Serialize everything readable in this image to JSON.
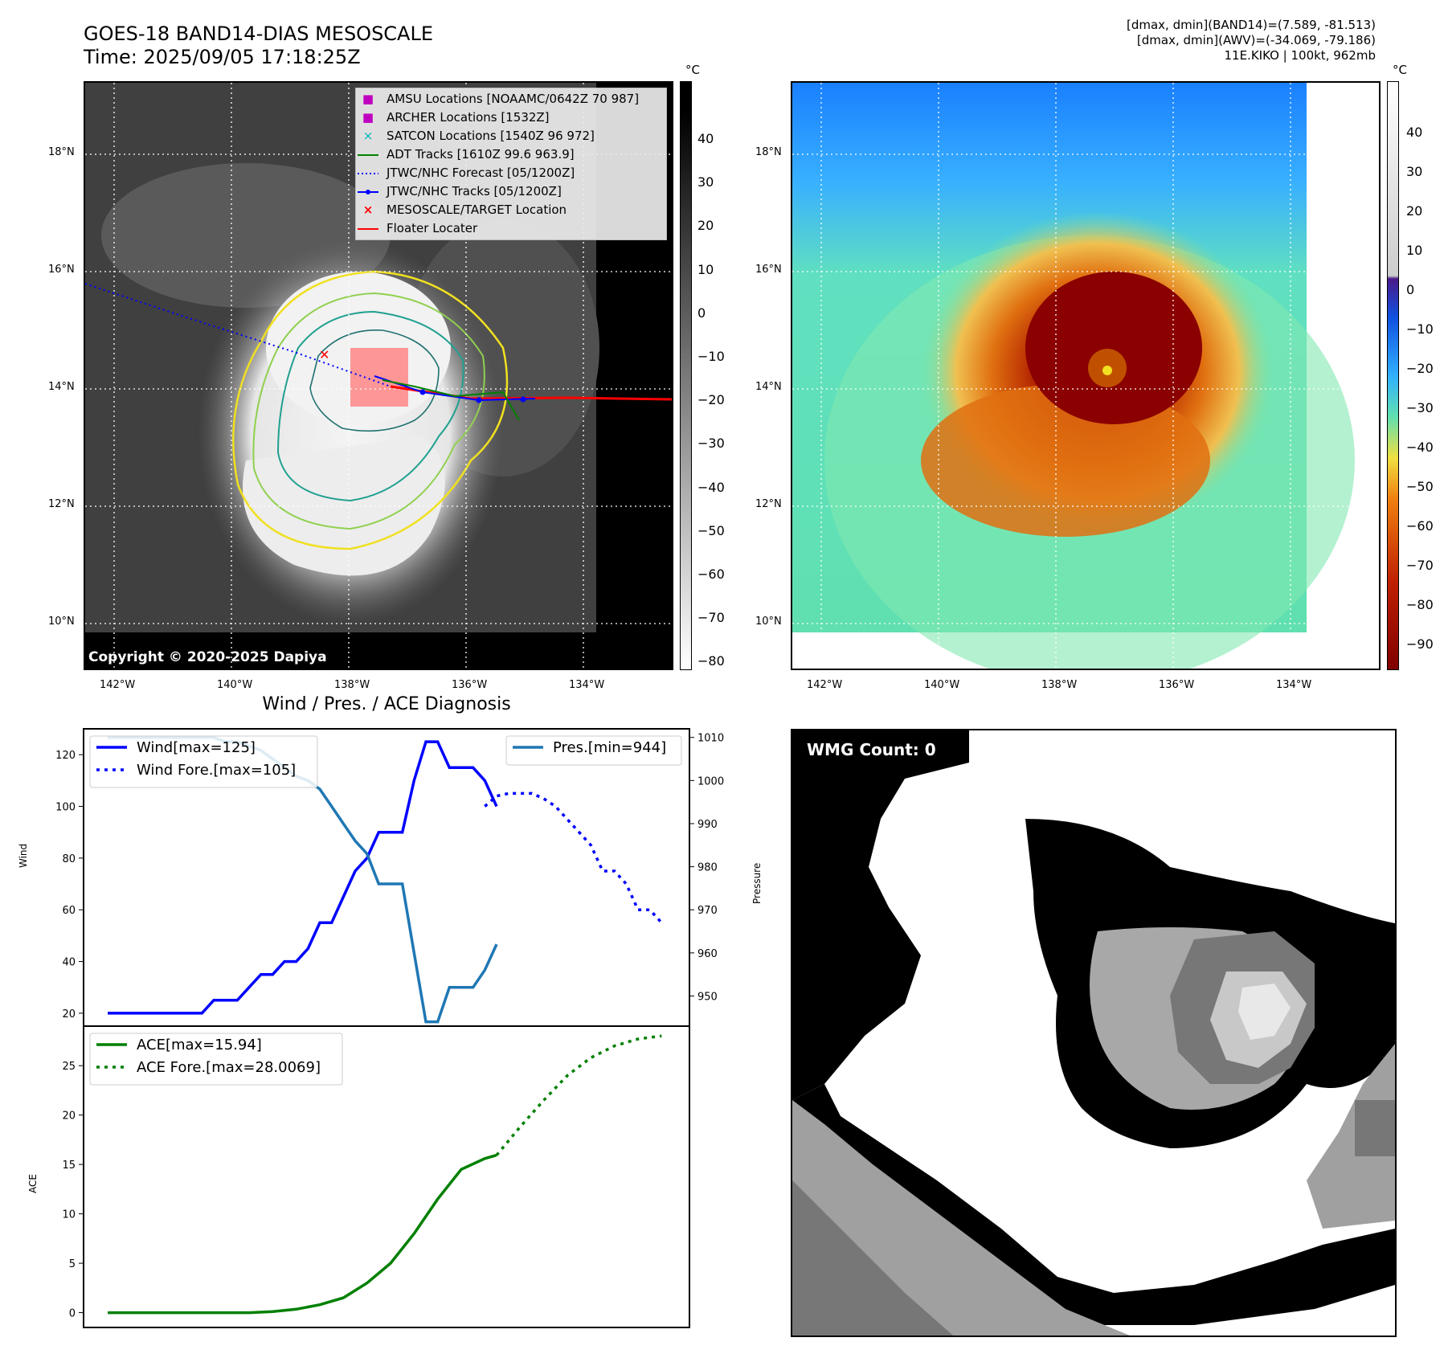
{
  "header": {
    "title_line1": "GOES-18 BAND14-DIAS MESOSCALE",
    "title_line2": "Time: 2025/09/05 17:18:25Z",
    "info_line1": "[dmax, dmin](BAND14)=(7.589, -81.513)",
    "info_line2": "[dmax, dmin](AWV)=(-34.069, -79.186)",
    "info_line3": "11E.KIKO | 100kt, 962mb"
  },
  "map": {
    "lat_labels": [
      "18°N",
      "16°N",
      "14°N",
      "12°N",
      "10°N"
    ],
    "lon_labels": [
      "142°W",
      "140°W",
      "138°W",
      "136°W",
      "134°W"
    ],
    "copyright": "Copyright © 2020-2025 Dapiya",
    "legend": [
      {
        "label": "AMSU Locations [NOAAMC/0642Z 70 987]",
        "marker": "■",
        "color": "#c000c0"
      },
      {
        "label": "ARCHER Locations [1532Z]",
        "marker": "■",
        "color": "#c000c0"
      },
      {
        "label": "SATCON Locations [1540Z 96 972]",
        "marker": "×",
        "color": "#00b8b8"
      },
      {
        "label": "ADT Tracks [1610Z 99.6 963.9]",
        "marker": "line",
        "color": "#008000"
      },
      {
        "label": "JTWC/NHC Forecast [05/1200Z]",
        "marker": "dotted",
        "color": "#0000ff"
      },
      {
        "label": "JTWC/NHC Tracks [05/1200Z]",
        "marker": "dotline",
        "color": "#0000ff"
      },
      {
        "label": "MESOSCALE/TARGET Location",
        "marker": "×",
        "color": "#ff0000"
      },
      {
        "label": "Floater Locater",
        "marker": "line",
        "color": "#ff0000"
      }
    ],
    "cbar_unit": "°C",
    "cbar_gray_ticks": [
      "40",
      "30",
      "20",
      "10",
      "0",
      "−10",
      "−20",
      "−30",
      "−40",
      "−50",
      "−60",
      "−70",
      "−80"
    ],
    "cbar_color_ticks": [
      "40",
      "30",
      "20",
      "10",
      "0",
      "−10",
      "−20",
      "−30",
      "−40",
      "−50",
      "−60",
      "−70",
      "−80",
      "−90"
    ],
    "wmg_label": "WMG Count: 0"
  },
  "chart_data": [
    {
      "type": "line",
      "title": "Wind / Pres. / ACE Diagnosis",
      "ylabel": "Wind",
      "ylabel2": "Pressure",
      "ylim": [
        15,
        130
      ],
      "y2lim": [
        943,
        1012
      ],
      "yticks": [
        20,
        40,
        60,
        80,
        100,
        120
      ],
      "y2ticks": [
        950,
        960,
        970,
        980,
        990,
        1000,
        1010
      ],
      "series": [
        {
          "name": "Wind[max=125]",
          "axis": "left",
          "style": "solid",
          "color": "#0000ff",
          "x": [
            0,
            1,
            2,
            3,
            4,
            5,
            6,
            7,
            8,
            9,
            10,
            11,
            12,
            13,
            14,
            15,
            16,
            17,
            18,
            19,
            20,
            21,
            22,
            23,
            24,
            25,
            26,
            27,
            28,
            29,
            30,
            31,
            32,
            33,
            34,
            35
          ],
          "y": [
            20,
            20,
            20,
            20,
            20,
            20,
            20,
            20,
            20,
            25,
            25,
            25,
            30,
            35,
            35,
            40,
            40,
            45,
            55,
            55,
            65,
            75,
            80,
            90,
            90,
            90,
            110,
            125,
            125,
            115,
            115,
            115,
            110,
            100,
            null,
            null
          ]
        },
        {
          "name": "Wind Fore.[max=105]",
          "axis": "left",
          "style": "dotted",
          "color": "#0000ff",
          "x": [
            32,
            33,
            34,
            35,
            36,
            37,
            38,
            39,
            40,
            41,
            42,
            43,
            44,
            45,
            46,
            47
          ],
          "y": [
            100,
            104,
            105,
            105,
            105,
            103,
            100,
            95,
            90,
            85,
            75,
            75,
            70,
            60,
            60,
            55
          ]
        },
        {
          "name": "Pres.[min=944]",
          "axis": "right",
          "style": "solid",
          "color": "#1f77b4",
          "x": [
            0,
            1,
            2,
            3,
            4,
            5,
            6,
            7,
            8,
            9,
            10,
            11,
            12,
            13,
            14,
            15,
            16,
            17,
            18,
            19,
            20,
            21,
            22,
            23,
            24,
            25,
            26,
            27,
            28,
            29,
            30,
            31,
            32,
            33
          ],
          "y": [
            1010,
            1010,
            1010,
            1010,
            1010,
            1010,
            1010,
            1010,
            1010,
            1010,
            1009,
            1009,
            1008,
            1007,
            1005,
            1003,
            1001,
            1000,
            998,
            994,
            990,
            986,
            983,
            976,
            976,
            976,
            960,
            944,
            944,
            952,
            952,
            952,
            956,
            962
          ]
        }
      ],
      "x_max": 48
    },
    {
      "type": "line",
      "ylabel": "ACE",
      "ylim": [
        -1.5,
        29
      ],
      "yticks": [
        0,
        5,
        10,
        15,
        20,
        25
      ],
      "series": [
        {
          "name": "ACE[max=15.94]",
          "style": "solid",
          "color": "#008000",
          "x": [
            0,
            4,
            8,
            12,
            14,
            16,
            18,
            20,
            22,
            24,
            26,
            28,
            30,
            32,
            33
          ],
          "y": [
            0,
            0,
            0,
            0,
            0.1,
            0.35,
            0.8,
            1.5,
            3,
            5,
            8,
            11.5,
            14.5,
            15.6,
            15.94
          ]
        },
        {
          "name": "ACE Fore.[max=28.0069]",
          "style": "dotted",
          "color": "#008000",
          "x": [
            33,
            35,
            37,
            39,
            41,
            43,
            45,
            47
          ],
          "y": [
            15.94,
            18.8,
            21.5,
            24,
            25.8,
            27,
            27.7,
            28.0069
          ]
        }
      ],
      "x_max": 48
    }
  ]
}
